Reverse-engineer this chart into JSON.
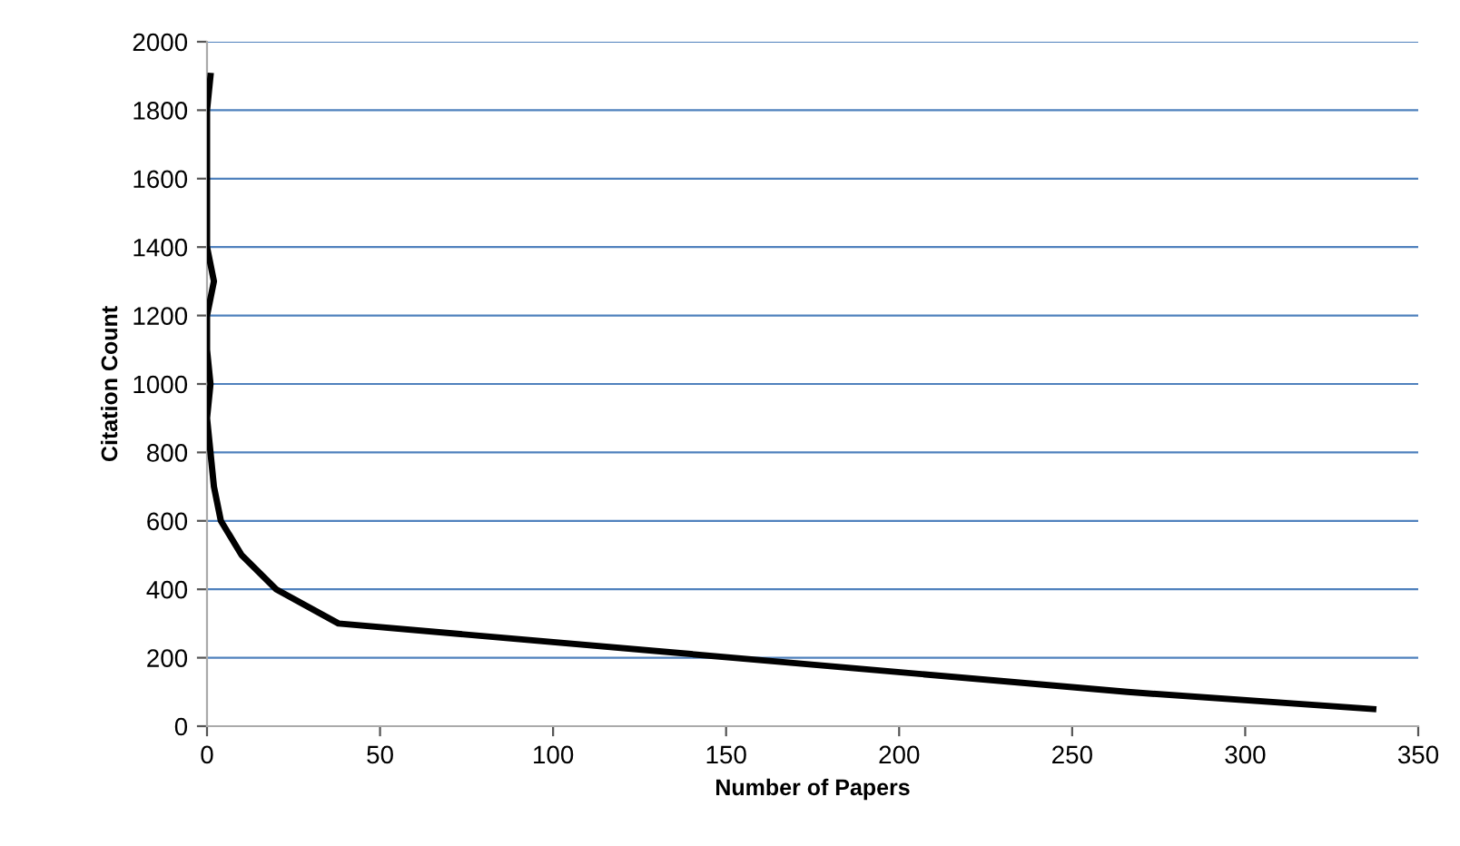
{
  "chart_data": {
    "type": "line",
    "xlabel": "Number of Papers",
    "ylabel": "Citation Count",
    "x": [
      337,
      266,
      152,
      38,
      20,
      10,
      4,
      2,
      1,
      0,
      1,
      0,
      0,
      2,
      0,
      0,
      0,
      0,
      0,
      1
    ],
    "values": [
      50,
      100,
      200,
      300,
      400,
      500,
      600,
      700,
      800,
      900,
      1000,
      1100,
      1200,
      1300,
      1400,
      1500,
      1600,
      1700,
      1800,
      1900
    ],
    "color": "#000000",
    "xlim": [
      0,
      350
    ],
    "xticks": [
      0,
      50,
      100,
      150,
      200,
      250,
      300,
      350
    ],
    "ylim": [
      0,
      2000
    ],
    "yticks": [
      0,
      200,
      400,
      600,
      800,
      1000,
      1200,
      1400,
      1600,
      1800,
      2000
    ],
    "grid": "y",
    "marker": "none",
    "line_style": "solid"
  }
}
